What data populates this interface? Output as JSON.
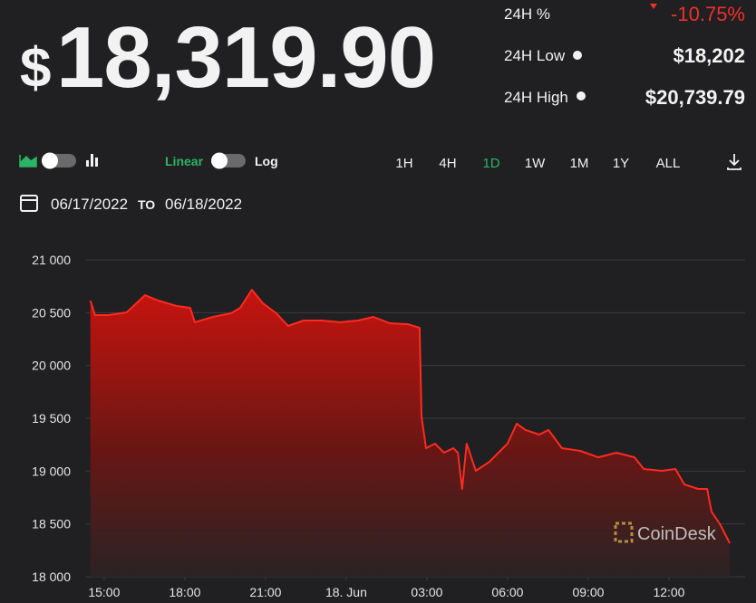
{
  "price": {
    "currency": "$",
    "amount": "18,319.90"
  },
  "stats": [
    {
      "label": "24H %",
      "value": "-10.75%"
    },
    {
      "label": "24H Low",
      "value": "$18,202"
    },
    {
      "label": "24H High",
      "value": "$20,739.79"
    }
  ],
  "scale_toggle": {
    "linear": "Linear",
    "log": "Log"
  },
  "ranges": {
    "items": [
      "1H",
      "4H",
      "1D",
      "1W",
      "1M",
      "1Y",
      "ALL"
    ],
    "active": "1D"
  },
  "date_range": {
    "from": "06/17/2022",
    "separator": "TO",
    "to": "06/18/2022"
  },
  "watermark": "CoinDesk",
  "chart_data": {
    "type": "area",
    "color": "#ff2a1f",
    "x": [
      14.49,
      14.66,
      15.17,
      15.84,
      16.52,
      17.02,
      17.7,
      18.2,
      18.37,
      19.04,
      19.72,
      20.06,
      20.49,
      20.9,
      21.4,
      21.84,
      22.42,
      23.09,
      23.76,
      24.44,
      25.01,
      25.62,
      26.29,
      26.73,
      26.8,
      26.97,
      27.3,
      27.64,
      27.98,
      28.15,
      28.31,
      28.48,
      28.82,
      29.33,
      29.66,
      30.0,
      30.34,
      30.67,
      31.18,
      31.52,
      32.02,
      32.7,
      33.37,
      34.05,
      34.72,
      35.06,
      35.73,
      36.24,
      36.57,
      37.08,
      37.42,
      37.58,
      37.92,
      38.26
    ],
    "values": [
      20614,
      20477,
      20477,
      20503,
      20666,
      20614,
      20563,
      20546,
      20409,
      20460,
      20494,
      20546,
      20717,
      20589,
      20494,
      20374,
      20426,
      20426,
      20409,
      20426,
      20460,
      20400,
      20391,
      20357,
      19517,
      19217,
      19260,
      19174,
      19217,
      19174,
      18831,
      19260,
      19003,
      19089,
      19174,
      19260,
      19449,
      19389,
      19346,
      19389,
      19217,
      19191,
      19131,
      19174,
      19131,
      19020,
      19003,
      19020,
      18874,
      18831,
      18831,
      18617,
      18489,
      18317
    ],
    "xlim": [
      14.33,
      38.36
    ],
    "xticks": [
      {
        "value": 15,
        "label": "15:00"
      },
      {
        "value": 18,
        "label": "18:00"
      },
      {
        "value": 21,
        "label": "21:00"
      },
      {
        "value": 24,
        "label": "18. Jun"
      },
      {
        "value": 27,
        "label": "03:00"
      },
      {
        "value": 30,
        "label": "06:00"
      },
      {
        "value": 33,
        "label": "09:00"
      },
      {
        "value": 36,
        "label": "12:00"
      }
    ],
    "ylim": [
      18000,
      21000
    ],
    "yticks": [
      {
        "value": 18000,
        "label": "18 000"
      },
      {
        "value": 18500,
        "label": "18 500"
      },
      {
        "value": 19000,
        "label": "19 000"
      },
      {
        "value": 19500,
        "label": "19 500"
      },
      {
        "value": 20000,
        "label": "20 000"
      },
      {
        "value": 20500,
        "label": "20 500"
      },
      {
        "value": 21000,
        "label": "21 000"
      }
    ],
    "grid": true
  }
}
